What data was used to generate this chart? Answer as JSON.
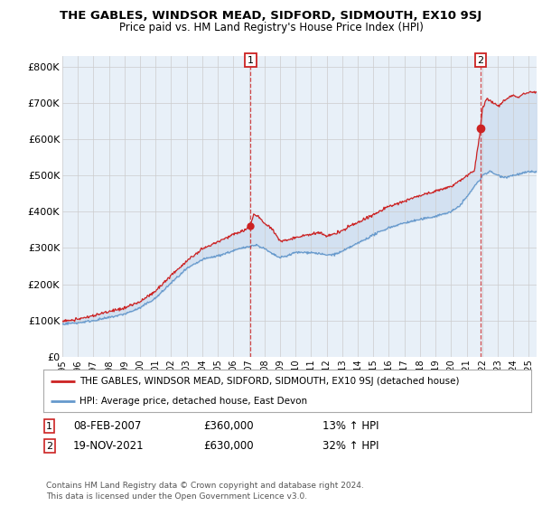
{
  "title": "THE GABLES, WINDSOR MEAD, SIDFORD, SIDMOUTH, EX10 9SJ",
  "subtitle": "Price paid vs. HM Land Registry's House Price Index (HPI)",
  "ylabel_ticks": [
    "£0",
    "£100K",
    "£200K",
    "£300K",
    "£400K",
    "£500K",
    "£600K",
    "£700K",
    "£800K"
  ],
  "ytick_values": [
    0,
    100000,
    200000,
    300000,
    400000,
    500000,
    600000,
    700000,
    800000
  ],
  "ylim": [
    0,
    830000
  ],
  "xlim_start": 1995.0,
  "xlim_end": 2025.5,
  "grid_color": "#cccccc",
  "bg_color": "#ffffff",
  "plot_bg_color": "#e8f0f8",
  "hpi_color": "#6699cc",
  "hpi_fill_color": "#c5d8ed",
  "price_color": "#cc2222",
  "marker1_date": 2007.1,
  "marker1_price": 360000,
  "marker1_label": "1",
  "marker2_date": 2021.9,
  "marker2_price": 630000,
  "marker2_label": "2",
  "legend_line1": "THE GABLES, WINDSOR MEAD, SIDFORD, SIDMOUTH, EX10 9SJ (detached house)",
  "legend_line2": "HPI: Average price, detached house, East Devon",
  "footnote": "Contains HM Land Registry data © Crown copyright and database right 2024.\nThis data is licensed under the Open Government Licence v3.0.",
  "xtick_years": [
    1995,
    1996,
    1997,
    1998,
    1999,
    2000,
    2001,
    2002,
    2003,
    2004,
    2005,
    2006,
    2007,
    2008,
    2009,
    2010,
    2011,
    2012,
    2013,
    2014,
    2015,
    2016,
    2017,
    2018,
    2019,
    2020,
    2021,
    2022,
    2023,
    2024,
    2025
  ],
  "hpi_pts": [
    [
      1995,
      90000
    ],
    [
      1996,
      94000
    ],
    [
      1997,
      101000
    ],
    [
      1998,
      109000
    ],
    [
      1999,
      119000
    ],
    [
      2000,
      136000
    ],
    [
      2001,
      163000
    ],
    [
      2002,
      205000
    ],
    [
      2003,
      243000
    ],
    [
      2004,
      268000
    ],
    [
      2005,
      278000
    ],
    [
      2006,
      292000
    ],
    [
      2007,
      305000
    ],
    [
      2007.5,
      308000
    ],
    [
      2008,
      298000
    ],
    [
      2008.5,
      283000
    ],
    [
      2009,
      272000
    ],
    [
      2009.5,
      278000
    ],
    [
      2010,
      287000
    ],
    [
      2011,
      287000
    ],
    [
      2011.5,
      283000
    ],
    [
      2012,
      279000
    ],
    [
      2012.5,
      281000
    ],
    [
      2013,
      289000
    ],
    [
      2014,
      311000
    ],
    [
      2015,
      335000
    ],
    [
      2016,
      355000
    ],
    [
      2017,
      368000
    ],
    [
      2018,
      378000
    ],
    [
      2019,
      388000
    ],
    [
      2020,
      400000
    ],
    [
      2020.5,
      415000
    ],
    [
      2021,
      440000
    ],
    [
      2021.5,
      470000
    ],
    [
      2021.9,
      490000
    ],
    [
      2022,
      500000
    ],
    [
      2022.5,
      510000
    ],
    [
      2023,
      500000
    ],
    [
      2023.5,
      495000
    ],
    [
      2024,
      500000
    ],
    [
      2025,
      510000
    ]
  ],
  "red_pts": [
    [
      1995,
      98000
    ],
    [
      1996,
      102000
    ],
    [
      1997,
      112000
    ],
    [
      1998,
      122000
    ],
    [
      1999,
      132000
    ],
    [
      2000,
      148000
    ],
    [
      2001,
      178000
    ],
    [
      2002,
      222000
    ],
    [
      2003,
      262000
    ],
    [
      2004,
      295000
    ],
    [
      2005,
      315000
    ],
    [
      2006,
      335000
    ],
    [
      2006.8,
      348000
    ],
    [
      2007.1,
      360000
    ],
    [
      2007.3,
      390000
    ],
    [
      2007.7,
      382000
    ],
    [
      2008,
      365000
    ],
    [
      2008.5,
      348000
    ],
    [
      2009,
      315000
    ],
    [
      2009.5,
      318000
    ],
    [
      2010,
      325000
    ],
    [
      2010.5,
      330000
    ],
    [
      2011,
      332000
    ],
    [
      2011.5,
      338000
    ],
    [
      2012,
      330000
    ],
    [
      2012.5,
      335000
    ],
    [
      2013,
      345000
    ],
    [
      2013.5,
      358000
    ],
    [
      2014,
      368000
    ],
    [
      2015,
      390000
    ],
    [
      2016,
      412000
    ],
    [
      2017,
      428000
    ],
    [
      2018,
      442000
    ],
    [
      2019,
      455000
    ],
    [
      2020,
      468000
    ],
    [
      2020.5,
      482000
    ],
    [
      2021,
      495000
    ],
    [
      2021.5,
      510000
    ],
    [
      2021.9,
      630000
    ],
    [
      2022,
      680000
    ],
    [
      2022.3,
      710000
    ],
    [
      2022.7,
      698000
    ],
    [
      2023,
      690000
    ],
    [
      2023.3,
      700000
    ],
    [
      2023.7,
      715000
    ],
    [
      2024,
      720000
    ],
    [
      2024.3,
      715000
    ],
    [
      2024.7,
      725000
    ],
    [
      2025,
      730000
    ]
  ]
}
